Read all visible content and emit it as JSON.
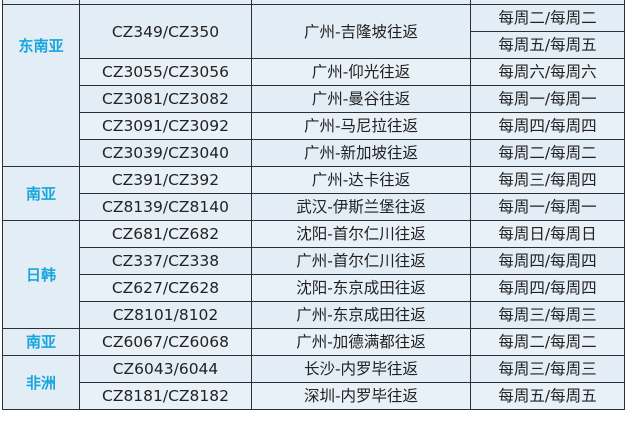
{
  "regions": [
    {
      "name": "东南亚",
      "rows": [
        {
          "flight": "CZ349/CZ350",
          "route": "广州-吉隆坡往返",
          "days": [
            "每周二/每周二",
            "每周五/每周五"
          ]
        },
        {
          "flight": "CZ3055/CZ3056",
          "route": "广州-仰光往返",
          "days": [
            "每周六/每周六"
          ]
        },
        {
          "flight": "CZ3081/CZ3082",
          "route": "广州-曼谷往返",
          "days": [
            "每周一/每周一"
          ]
        },
        {
          "flight": "CZ3091/CZ3092",
          "route": "广州-马尼拉往返",
          "days": [
            "每周四/每周四"
          ]
        },
        {
          "flight": "CZ3039/CZ3040",
          "route": "广州-新加坡往返",
          "days": [
            "每周二/每周二"
          ]
        }
      ]
    },
    {
      "name": "南亚",
      "rows": [
        {
          "flight": "CZ391/CZ392",
          "route": "广州-达卡往返",
          "days": [
            "每周三/每周四"
          ]
        },
        {
          "flight": "CZ8139/CZ8140",
          "route": "武汉-伊斯兰堡往返",
          "days": [
            "每周一/每周一"
          ]
        }
      ]
    },
    {
      "name": "日韩",
      "rows": [
        {
          "flight": "CZ681/CZ682",
          "route": "沈阳-首尔仁川往返",
          "days": [
            "每周日/每周日"
          ]
        },
        {
          "flight": "CZ337/CZ338",
          "route": "广州-首尔仁川往返",
          "days": [
            "每周四/每周四"
          ]
        },
        {
          "flight": "CZ627/CZ628",
          "route": "沈阳-东京成田往返",
          "days": [
            "每周四/每周四"
          ]
        },
        {
          "flight": "CZ8101/8102",
          "route": "广州-东京成田往返",
          "days": [
            "每周三/每周三"
          ]
        }
      ]
    },
    {
      "name": "南亚",
      "rows": [
        {
          "flight": "CZ6067/CZ6068",
          "route": "广州-加德满都往返",
          "days": [
            "每周二/每周二"
          ]
        }
      ]
    },
    {
      "name": "非洲",
      "rows": [
        {
          "flight": "CZ6043/6044",
          "route": "长沙-内罗毕往返",
          "days": [
            "每周三/每周三"
          ]
        },
        {
          "flight": "CZ8181/CZ8182",
          "route": "深圳-内罗毕往返",
          "days": [
            "每周五/每周五"
          ]
        }
      ]
    }
  ],
  "colors": {
    "region_text": "#19a6dd",
    "cell_bg": "#e3edf6",
    "border": "#2b2f36"
  }
}
